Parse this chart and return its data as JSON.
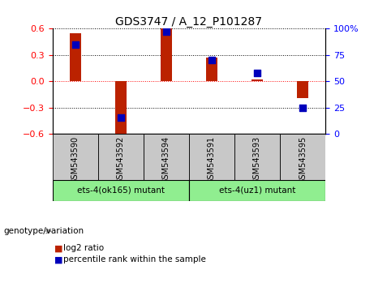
{
  "title": "GDS3747 / A_12_P101287",
  "samples": [
    "GSM543590",
    "GSM543592",
    "GSM543594",
    "GSM543591",
    "GSM543593",
    "GSM543595"
  ],
  "log2_ratio": [
    0.55,
    -0.63,
    0.6,
    0.27,
    0.02,
    -0.19
  ],
  "percentile": [
    85,
    15,
    97,
    70,
    58,
    25
  ],
  "groups": [
    {
      "label": "ets-4(ok165) mutant",
      "start": 0,
      "end": 3,
      "color": "#90EE90"
    },
    {
      "label": "ets-4(uz1) mutant",
      "start": 3,
      "end": 6,
      "color": "#90EE90"
    }
  ],
  "bar_color": "#BB2200",
  "dot_color": "#0000BB",
  "ylim_left": [
    -0.6,
    0.6
  ],
  "yticks_left": [
    -0.6,
    -0.3,
    0.0,
    0.3,
    0.6
  ],
  "ylim_right": [
    0,
    100
  ],
  "yticks_right": [
    0,
    25,
    50,
    75,
    100
  ],
  "ytick_labels_right": [
    "0",
    "25",
    "50",
    "75",
    "100%"
  ],
  "legend_log2": "log2 ratio",
  "legend_pct": "percentile rank within the sample",
  "genotype_label": "genotype/variation",
  "background_color": "#ffffff",
  "bar_width": 0.25,
  "dot_size": 30,
  "sample_bg": "#C8C8C8",
  "group_bg": "#66DD66"
}
